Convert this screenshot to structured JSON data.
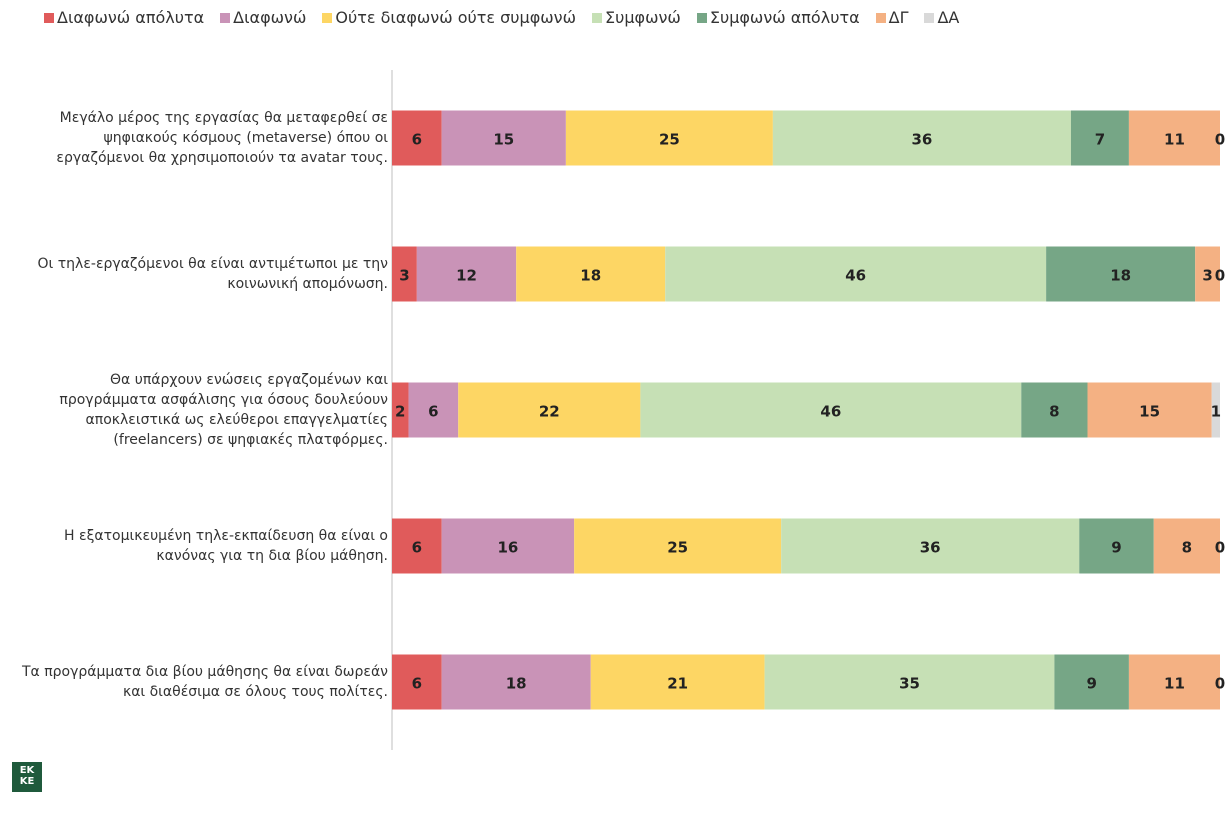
{
  "chart_data": {
    "type": "stacked-bar-horizontal",
    "categories": [
      "Μεγάλο μέρος της εργασίας θα μεταφερθεί σε ψηφιακούς κόσμους (metaverse) όπου οι εργαζόμενοι θα χρησιμοποιούν τα avatar τους.",
      "Οι τηλε-εργαζόμενοι θα είναι αντιμέτωποι με την κοινωνική απομόνωση.",
      "Θα υπάρχουν ενώσεις εργαζομένων και προγράμματα ασφάλισης για όσους δουλεύουν αποκλειστικά ως ελεύθεροι επαγγελματίες (freelancers) σε ψηφιακές πλατφόρμες.",
      "Η εξατομικευμένη τηλε-εκπαίδευση  θα είναι ο κανόνας για τη δια βίου μάθηση.",
      "Τα προγράμματα δια βίου μάθησης θα είναι δωρεάν και διαθέσιμα σε όλους τους πολίτες."
    ],
    "series": [
      {
        "name": "Διαφωνώ απόλυτα",
        "color": "#e05b5b",
        "values": [
          6,
          3,
          2,
          6,
          6
        ]
      },
      {
        "name": "Διαφωνώ",
        "color": "#c993b7",
        "values": [
          15,
          12,
          6,
          16,
          18
        ]
      },
      {
        "name": "Ούτε διαφωνώ ούτε συμφωνώ",
        "color": "#fdd664",
        "values": [
          25,
          18,
          22,
          25,
          21
        ]
      },
      {
        "name": "Συμφωνώ",
        "color": "#c6e0b5",
        "values": [
          36,
          46,
          46,
          36,
          35
        ]
      },
      {
        "name": "Συμφωνώ απόλυτα",
        "color": "#76a686",
        "values": [
          7,
          18,
          8,
          9,
          9
        ]
      },
      {
        "name": "ΔΓ",
        "color": "#f4b183",
        "values": [
          11,
          3,
          15,
          8,
          11
        ]
      },
      {
        "name": "ΔΑ",
        "color": "#d9d9d9",
        "values": [
          0,
          0,
          1,
          0,
          0
        ]
      }
    ],
    "xlim": [
      0,
      100
    ]
  },
  "logo": [
    "EK",
    "KE"
  ]
}
